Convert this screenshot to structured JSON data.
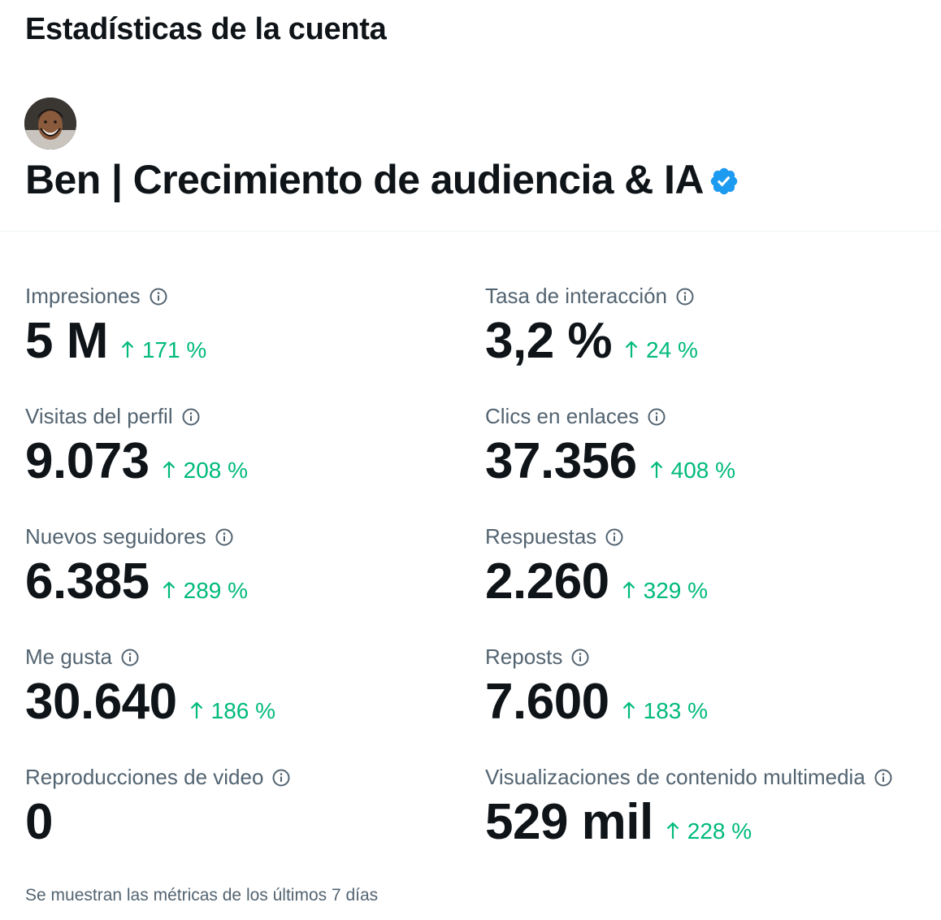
{
  "header": {
    "title": "Estadísticas de la cuenta"
  },
  "account": {
    "name": "Ben | Crecimiento de audiencia & IA",
    "verified_icon": "verified-badge-icon",
    "verified_color": "#1d9bf0"
  },
  "metrics": [
    {
      "label": "Impresiones",
      "value": "5 M",
      "change": "171 %"
    },
    {
      "label": "Tasa de interacción",
      "value": "3,2 %",
      "change": "24 %"
    },
    {
      "label": "Visitas del perfil",
      "value": "9.073",
      "change": "208 %"
    },
    {
      "label": "Clics en enlaces",
      "value": "37.356",
      "change": "408 %"
    },
    {
      "label": "Nuevos seguidores",
      "value": "6.385",
      "change": "289 %"
    },
    {
      "label": "Respuestas",
      "value": "2.260",
      "change": "329 %"
    },
    {
      "label": "Me gusta",
      "value": "30.640",
      "change": "186 %"
    },
    {
      "label": "Reposts",
      "value": "7.600",
      "change": "183 %"
    },
    {
      "label": "Reproducciones de video",
      "value": "0",
      "change": ""
    },
    {
      "label": "Visualizaciones de contenido multimedia",
      "value": "529 mil",
      "change": "228 %"
    }
  ],
  "footnote": "Se muestran las métricas de los últimos 7 días",
  "colors": {
    "positive": "#00ba7c",
    "secondary_text": "#536471",
    "primary_text": "#0f1419",
    "divider": "#eff3f4"
  }
}
